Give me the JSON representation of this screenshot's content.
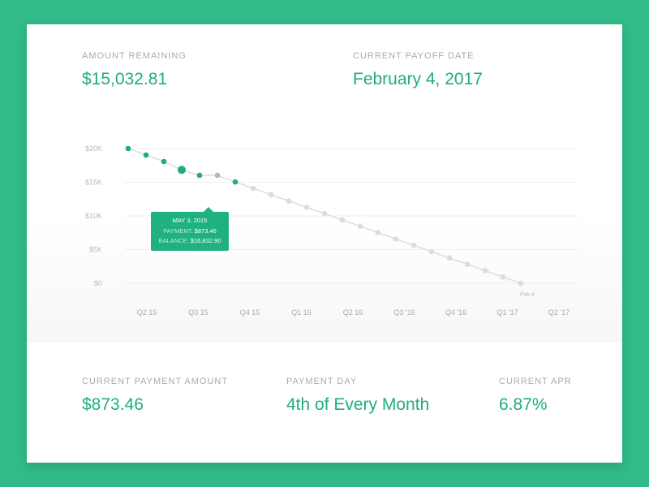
{
  "summary": {
    "amount_remaining_label": "Amount Remaining",
    "amount_remaining": "$15,032.81",
    "payoff_date_label": "Current Payoff Date",
    "payoff_date": "February 4, 2017"
  },
  "footer": {
    "payment_amount_label": "Current Payment Amount",
    "payment_amount": "$873.46",
    "payment_day_label": "Payment Day",
    "payment_day": "4th of Every Month",
    "apr_label": "Current APR",
    "apr": "6.87%"
  },
  "tooltip": {
    "date": "MAY 3, 2015",
    "payment_label": "PAYMENT:",
    "payment": "$873.46",
    "balance_label": "BALANCE:",
    "balance": "$16,832.90"
  },
  "chart_data": {
    "type": "line",
    "ylim": [
      0,
      20000
    ],
    "yticks": [
      "$20K",
      "$15K",
      "$10K",
      "$5K",
      "$0"
    ],
    "ytick_values": [
      20000,
      15000,
      10000,
      5000,
      0
    ],
    "xticks": [
      "Q2 15",
      "Q3 15",
      "Q4 15",
      "Q1 16",
      "Q2 16",
      "Q3 '16",
      "Q4 '16",
      "Q1 '17",
      "Q2 '17"
    ],
    "end_label": "Feb 4",
    "values": [
      20000,
      19036,
      18072,
      16833,
      16024,
      16024,
      15033,
      14096,
      13156,
      12216,
      11276,
      10336,
      9396,
      8456,
      7516,
      6576,
      5636,
      4696,
      3756,
      2816,
      1876,
      936,
      0
    ],
    "status": [
      "paid",
      "paid",
      "paid",
      "selected",
      "paid",
      "missed",
      "paid",
      "future",
      "future",
      "future",
      "future",
      "future",
      "future",
      "future",
      "future",
      "future",
      "future",
      "future",
      "future",
      "future",
      "future",
      "future",
      "future"
    ],
    "colors": {
      "paid": "#1fae7a",
      "missed": "#b5b5b5",
      "future": "#dcdcdc",
      "line": "#dddddd",
      "grid": "#eeeeee"
    }
  }
}
